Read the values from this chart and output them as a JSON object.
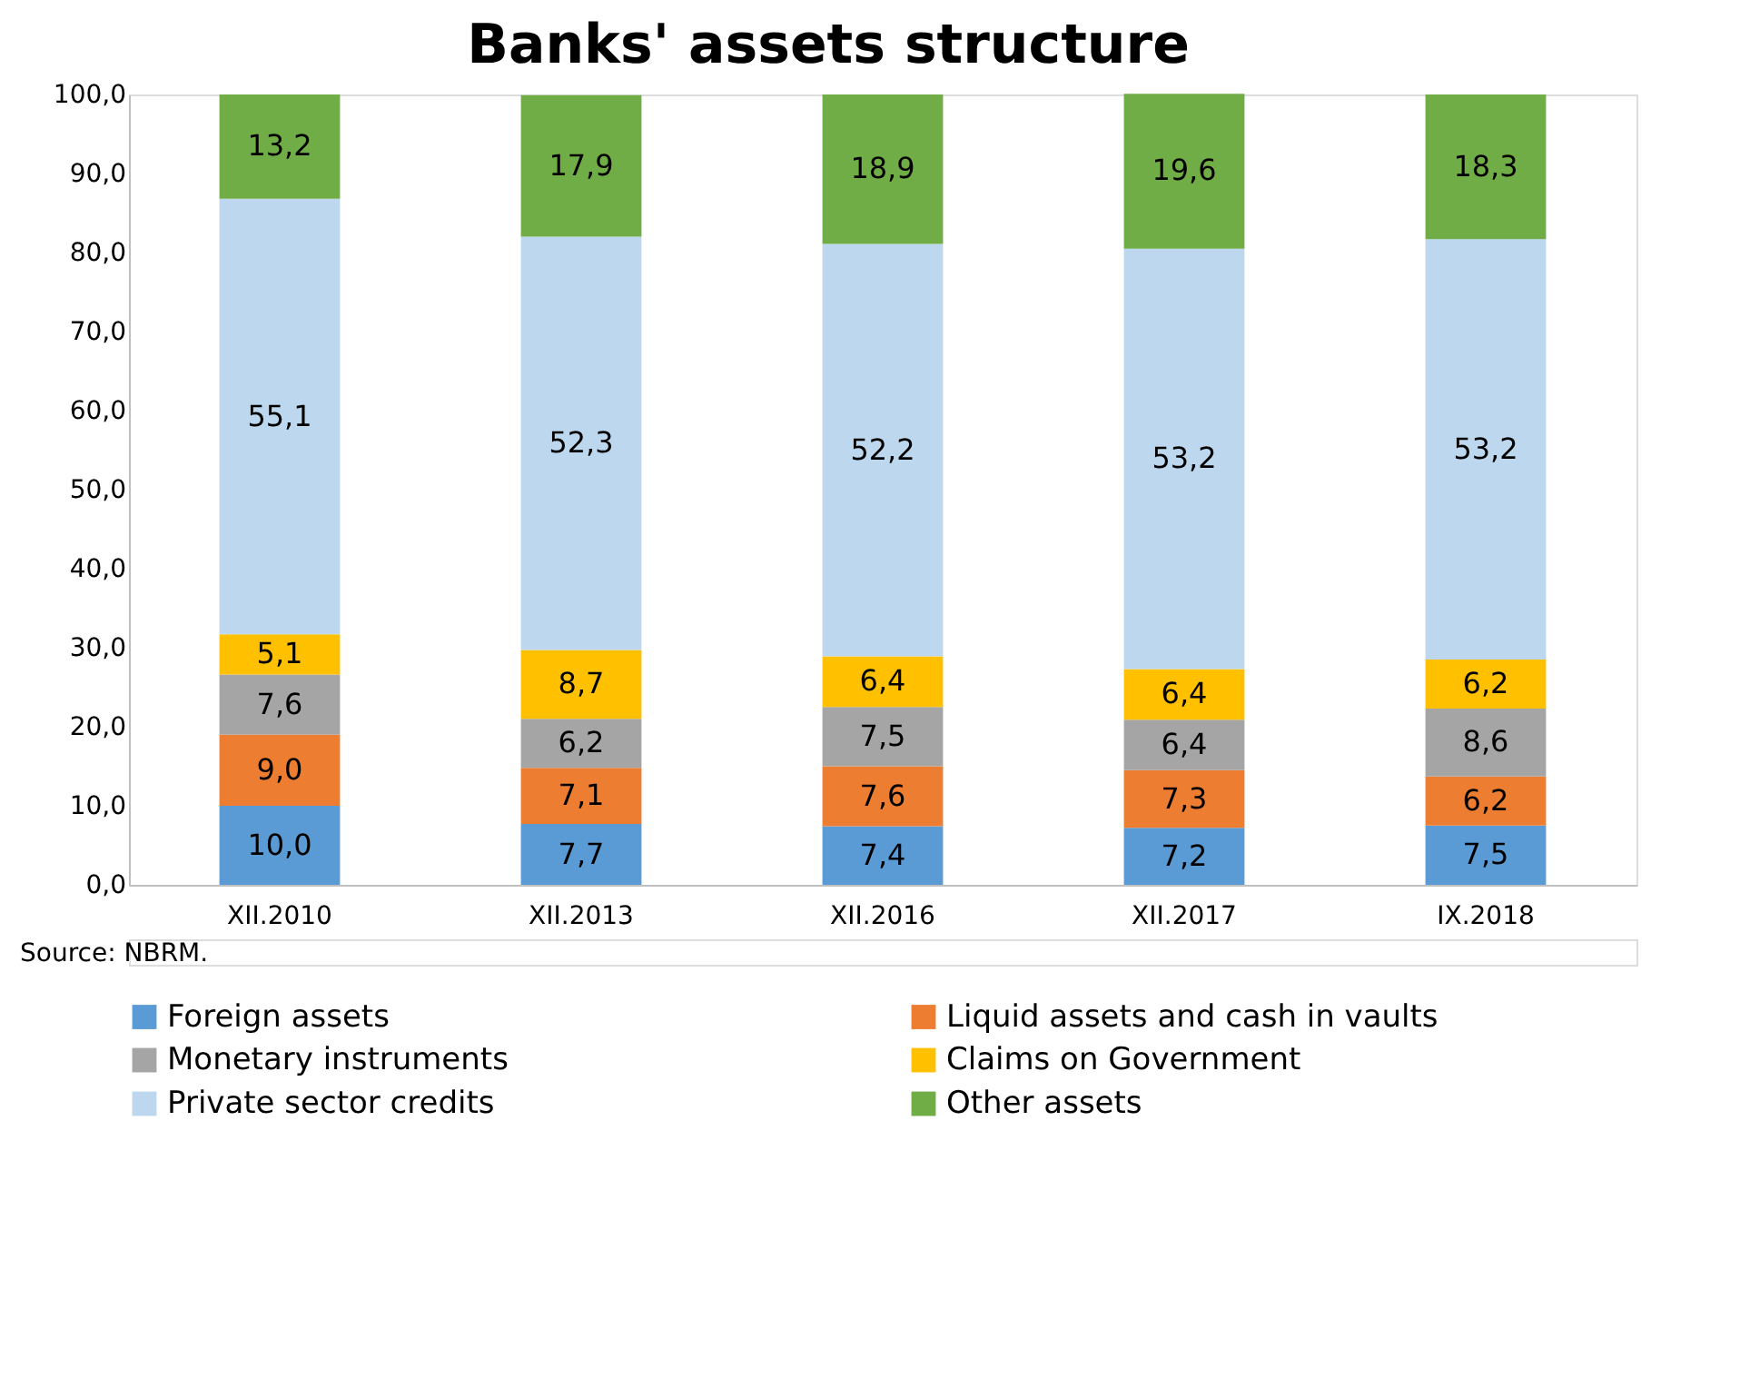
{
  "chart_data": {
    "type": "bar",
    "title": "Banks' assets structure",
    "stacked": true,
    "grid": false,
    "legend": "bottom",
    "categories": [
      "XII.2010",
      "XII.2013",
      "XII.2016",
      "XII.2017",
      "IX.2018"
    ],
    "ylim": [
      0,
      100
    ],
    "yticks": [
      {
        "value": 0,
        "label": "0,0"
      },
      {
        "value": 10,
        "label": "10,0"
      },
      {
        "value": 20,
        "label": "20,0"
      },
      {
        "value": 30,
        "label": "30,0"
      },
      {
        "value": 40,
        "label": "40,0"
      },
      {
        "value": 50,
        "label": "50,0"
      },
      {
        "value": 60,
        "label": "60,0"
      },
      {
        "value": 70,
        "label": "70,0"
      },
      {
        "value": 80,
        "label": "80,0"
      },
      {
        "value": 90,
        "label": "90,0"
      },
      {
        "value": 100,
        "label": "100,0"
      }
    ],
    "series": [
      {
        "name": "Foreign assets",
        "color": "#5b9bd5",
        "values": [
          10.0,
          7.7,
          7.4,
          7.2,
          7.5
        ],
        "value_labels": [
          "10,0",
          "7,7",
          "7,4",
          "7,2",
          "7,5"
        ]
      },
      {
        "name": "Liquid assets and cash in vaults",
        "color": "#ed7d31",
        "values": [
          9.0,
          7.1,
          7.6,
          7.3,
          6.2
        ],
        "value_labels": [
          "9,0",
          "7,1",
          "7,6",
          "7,3",
          "6,2"
        ]
      },
      {
        "name": "Monetary instruments",
        "color": "#a5a5a5",
        "values": [
          7.6,
          6.2,
          7.5,
          6.4,
          8.6
        ],
        "value_labels": [
          "7,6",
          "6,2",
          "7,5",
          "6,4",
          "8,6"
        ]
      },
      {
        "name": "Claims on Government",
        "color": "#ffc000",
        "values": [
          5.1,
          8.7,
          6.4,
          6.4,
          6.2
        ],
        "value_labels": [
          "5,1",
          "8,7",
          "6,4",
          "6,4",
          "6,2"
        ]
      },
      {
        "name": "Private sector credits",
        "color": "#bdd7ee",
        "values": [
          55.1,
          52.3,
          52.2,
          53.2,
          53.2
        ],
        "value_labels": [
          "55,1",
          "52,3",
          "52,2",
          "53,2",
          "53,2"
        ]
      },
      {
        "name": "Other assets",
        "color": "#70ad47",
        "values": [
          13.2,
          17.9,
          18.9,
          19.6,
          18.3
        ],
        "value_labels": [
          "13,2",
          "17,9",
          "18,9",
          "19,6",
          "18,3"
        ]
      }
    ],
    "annotations": [
      "Source: NBRM."
    ]
  }
}
